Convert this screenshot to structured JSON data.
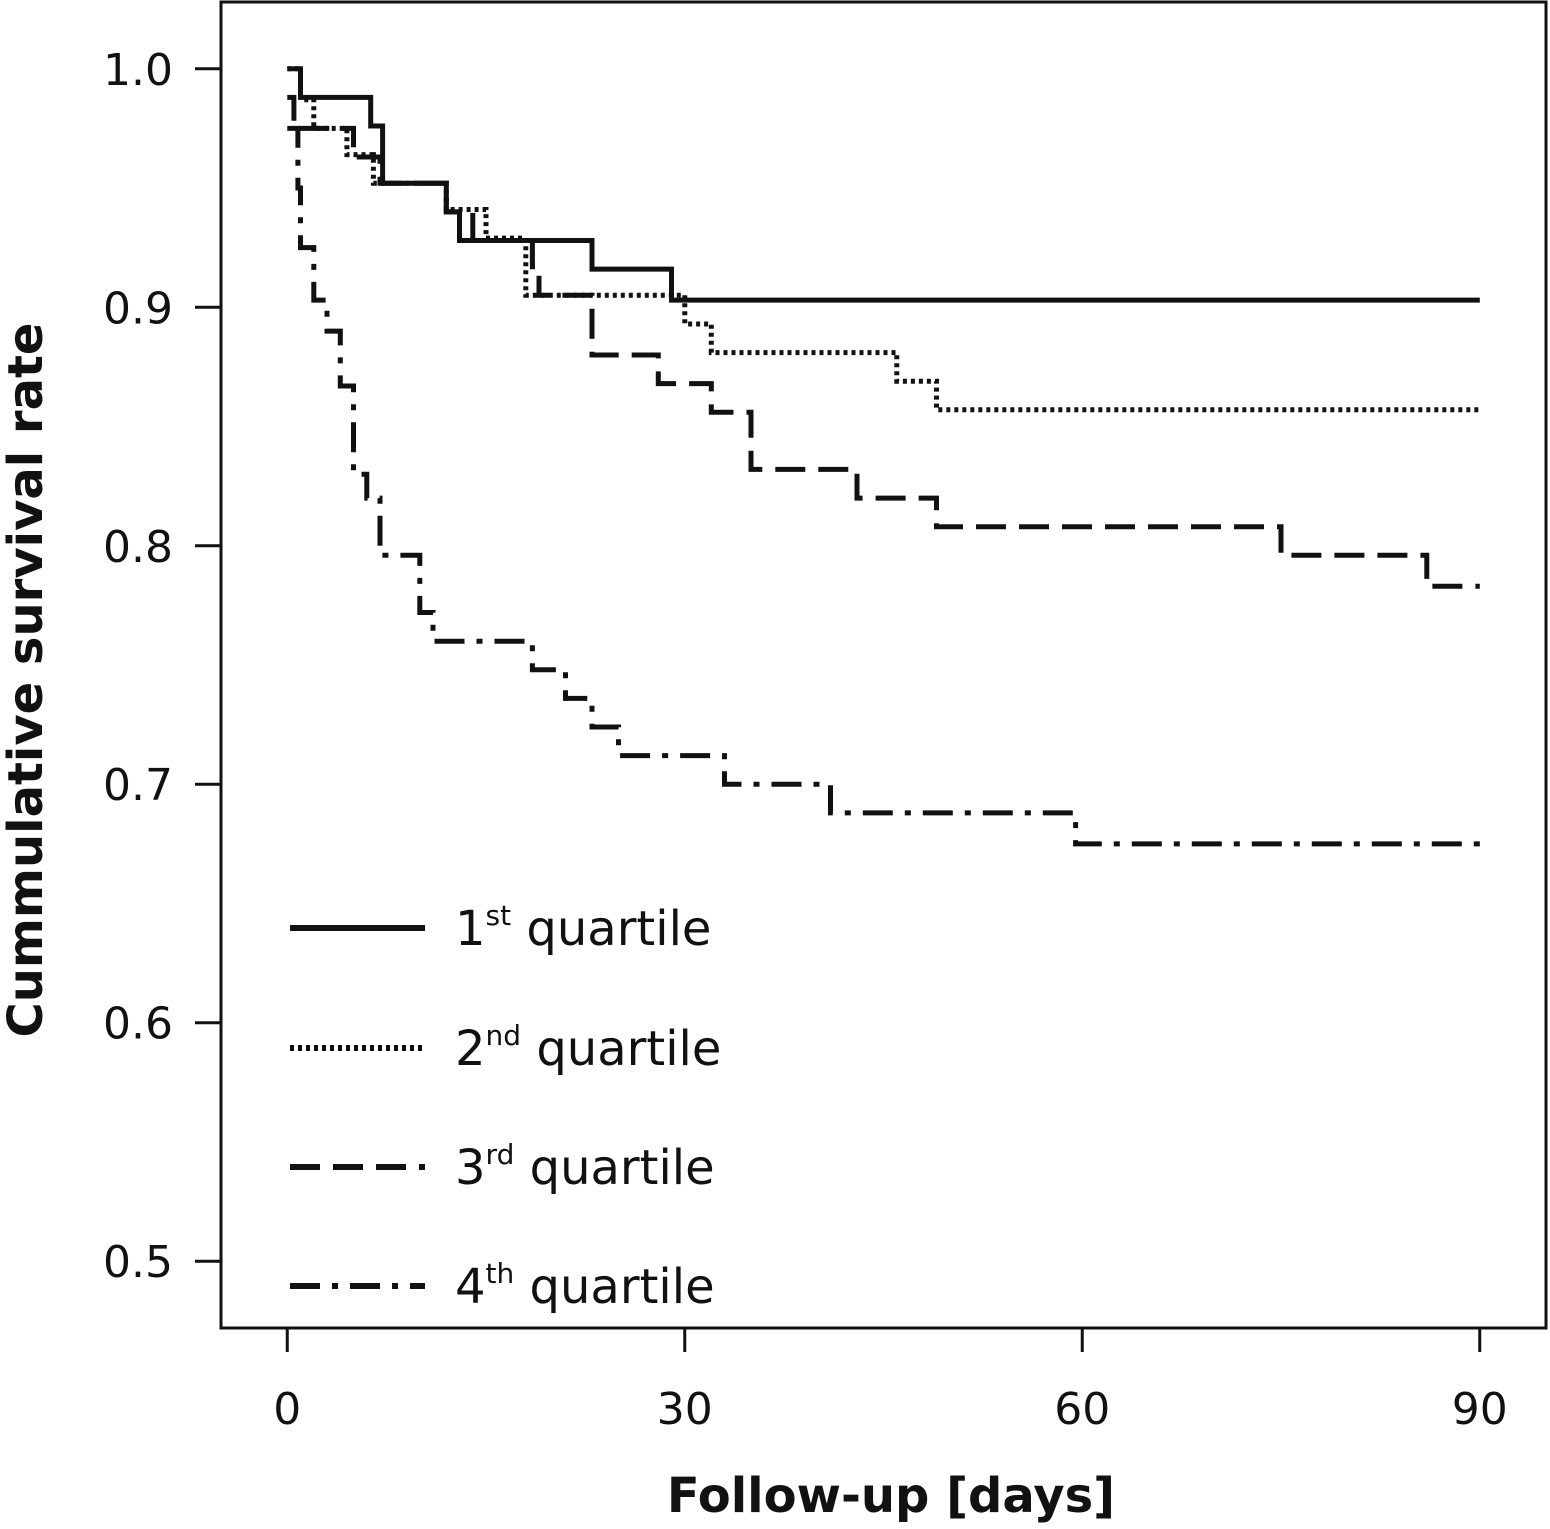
{
  "chart_data": {
    "type": "line",
    "subtype": "kaplan-meier-step",
    "title": "",
    "xlabel": "Follow-up [days]",
    "ylabel": "Cummulative survival rate",
    "xlim": [
      -5,
      95
    ],
    "ylim": [
      0.472,
      1.028
    ],
    "x_ticks": [
      0,
      30,
      60,
      90
    ],
    "x_tick_labels": [
      "0",
      "30",
      "60",
      "90"
    ],
    "y_ticks": [
      1.0,
      0.9,
      0.8,
      0.7,
      0.6,
      0.5
    ],
    "y_tick_labels": [
      "1.0",
      "0.9",
      "0.8",
      "0.7",
      "0.6",
      "0.5"
    ],
    "grid": false,
    "legend_position": "bottom-left",
    "line_color": "#111111",
    "series": [
      {
        "label": "1",
        "superscript": "st",
        "suffix": " quartile",
        "style": "solid",
        "points": [
          [
            0,
            1.0
          ],
          [
            1,
            0.988
          ],
          [
            6.3,
            0.976
          ],
          [
            7.2,
            0.952
          ],
          [
            12,
            0.94
          ],
          [
            13,
            0.928
          ],
          [
            23,
            0.916
          ],
          [
            29,
            0.903
          ],
          [
            90,
            0.903
          ]
        ]
      },
      {
        "label": "2",
        "superscript": "nd",
        "suffix": " quartile",
        "style": "dotted",
        "points": [
          [
            0,
            1.0
          ],
          [
            1,
            0.987
          ],
          [
            2,
            0.975
          ],
          [
            4.5,
            0.964
          ],
          [
            6.5,
            0.952
          ],
          [
            12,
            0.941
          ],
          [
            15,
            0.929
          ],
          [
            18,
            0.905
          ],
          [
            30,
            0.893
          ],
          [
            32,
            0.881
          ],
          [
            46,
            0.869
          ],
          [
            49,
            0.857
          ],
          [
            90,
            0.857
          ]
        ]
      },
      {
        "label": "3",
        "superscript": "rd",
        "suffix": " quartile",
        "style": "dashed",
        "points": [
          [
            0,
            0.988
          ],
          [
            0.5,
            0.975
          ],
          [
            5,
            0.963
          ],
          [
            7,
            0.952
          ],
          [
            12,
            0.94
          ],
          [
            14,
            0.928
          ],
          [
            18.5,
            0.917
          ],
          [
            19,
            0.905
          ],
          [
            23,
            0.88
          ],
          [
            28,
            0.868
          ],
          [
            32,
            0.856
          ],
          [
            35,
            0.832
          ],
          [
            43,
            0.82
          ],
          [
            49,
            0.808
          ],
          [
            75,
            0.796
          ],
          [
            86,
            0.783
          ],
          [
            90,
            0.783
          ]
        ]
      },
      {
        "label": "4",
        "superscript": "th",
        "suffix": " quartile",
        "style": "dashdot",
        "points": [
          [
            0,
            0.975
          ],
          [
            0.8,
            0.95
          ],
          [
            1,
            0.925
          ],
          [
            2,
            0.903
          ],
          [
            3,
            0.89
          ],
          [
            4,
            0.867
          ],
          [
            5,
            0.83
          ],
          [
            6,
            0.82
          ],
          [
            7,
            0.796
          ],
          [
            10,
            0.772
          ],
          [
            11,
            0.76
          ],
          [
            18.5,
            0.748
          ],
          [
            21,
            0.736
          ],
          [
            23,
            0.724
          ],
          [
            25,
            0.712
          ],
          [
            33,
            0.7
          ],
          [
            41,
            0.688
          ],
          [
            59.5,
            0.675
          ],
          [
            90,
            0.675
          ]
        ]
      }
    ]
  }
}
